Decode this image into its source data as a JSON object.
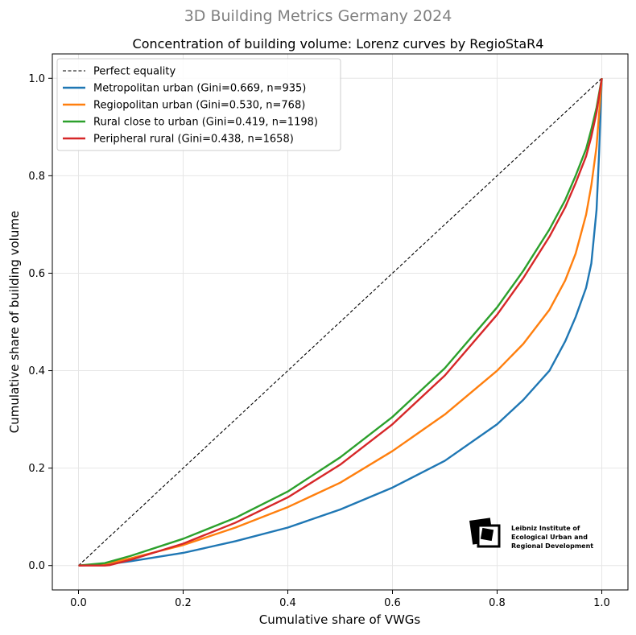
{
  "chart_data": {
    "type": "line",
    "suptitle": "3D Building Metrics Germany 2024",
    "title": "Concentration of building volume: Lorenz curves by RegioStaR4",
    "xlabel": "Cumulative share of VWGs",
    "ylabel": "Cumulative share of building volume",
    "xlim": [
      -0.05,
      1.05
    ],
    "ylim": [
      -0.05,
      1.05
    ],
    "xticks": [
      "0.0",
      "0.2",
      "0.4",
      "0.6",
      "0.8",
      "1.0"
    ],
    "yticks": [
      "0.0",
      "0.2",
      "0.4",
      "0.6",
      "0.8",
      "1.0"
    ],
    "grid": true,
    "legend_position": "top-left",
    "reference": {
      "name": "Perfect equality",
      "color": "#000000",
      "style": "dashed",
      "x": [
        0,
        1
      ],
      "y": [
        0,
        1
      ]
    },
    "series": [
      {
        "name": "Metropolitan urban (Gini=0.669, n=935)",
        "color": "#1f77b4",
        "x": [
          0,
          0.05,
          0.1,
          0.2,
          0.3,
          0.4,
          0.5,
          0.6,
          0.7,
          0.8,
          0.85,
          0.9,
          0.93,
          0.95,
          0.97,
          0.98,
          0.99,
          0.995,
          1.0
        ],
        "y": [
          0,
          0.002,
          0.009,
          0.026,
          0.05,
          0.078,
          0.115,
          0.16,
          0.215,
          0.29,
          0.34,
          0.4,
          0.46,
          0.51,
          0.57,
          0.62,
          0.73,
          0.85,
          1.0
        ]
      },
      {
        "name": "Regiopolitan urban (Gini=0.530, n=768)",
        "color": "#ff7f0e",
        "x": [
          0,
          0.05,
          0.1,
          0.2,
          0.3,
          0.4,
          0.5,
          0.6,
          0.7,
          0.8,
          0.85,
          0.9,
          0.93,
          0.95,
          0.97,
          0.98,
          0.99,
          1.0
        ],
        "y": [
          0,
          0.003,
          0.015,
          0.042,
          0.078,
          0.12,
          0.17,
          0.235,
          0.31,
          0.4,
          0.455,
          0.525,
          0.585,
          0.64,
          0.72,
          0.78,
          0.86,
          1.0
        ]
      },
      {
        "name": "Rural close to urban (Gini=0.419, n=1198)",
        "color": "#2ca02c",
        "x": [
          0,
          0.05,
          0.1,
          0.2,
          0.3,
          0.4,
          0.5,
          0.6,
          0.7,
          0.8,
          0.85,
          0.9,
          0.93,
          0.95,
          0.97,
          0.98,
          0.99,
          1.0
        ],
        "y": [
          0,
          0.005,
          0.02,
          0.055,
          0.098,
          0.152,
          0.222,
          0.305,
          0.405,
          0.53,
          0.605,
          0.69,
          0.75,
          0.8,
          0.855,
          0.895,
          0.94,
          1.0
        ]
      },
      {
        "name": "Peripheral rural (Gini=0.438, n=1658)",
        "color": "#d62728",
        "x": [
          0,
          0.05,
          0.06,
          0.1,
          0.2,
          0.3,
          0.4,
          0.5,
          0.6,
          0.7,
          0.8,
          0.85,
          0.9,
          0.93,
          0.95,
          0.97,
          0.98,
          0.99,
          1.0
        ],
        "y": [
          0,
          0.0,
          0.001,
          0.012,
          0.045,
          0.088,
          0.14,
          0.207,
          0.29,
          0.39,
          0.515,
          0.59,
          0.675,
          0.735,
          0.785,
          0.84,
          0.88,
          0.93,
          1.0
        ]
      }
    ]
  },
  "logo": {
    "line1": "Leibniz Institute of",
    "line2": "Ecological Urban and",
    "line3": "Regional Development"
  }
}
